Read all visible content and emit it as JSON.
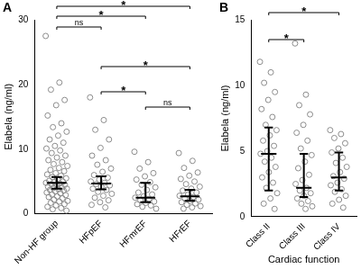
{
  "chart_data": [
    {
      "type": "scatter",
      "title": "A",
      "y_label": "Elabela (ng/ml)",
      "categories": [
        "Non-HF group",
        "HFpEF",
        "HFmrEF",
        "HFrEF"
      ],
      "values": [
        [
          27.5,
          20.3,
          19.2,
          17.6,
          16.8,
          15.2,
          14.0,
          13.4,
          12.7,
          12.1,
          11.5,
          11.0,
          10.5,
          10.1,
          9.8,
          9.4,
          9.0,
          8.7,
          8.3,
          8.0,
          7.7,
          7.4,
          7.1,
          6.8,
          6.6,
          6.3,
          6.1,
          5.9,
          5.7,
          5.5,
          5.3,
          5.1,
          5.0,
          4.9,
          4.8,
          4.7,
          4.6,
          4.5,
          4.4,
          4.2,
          4.1,
          4.0,
          3.9,
          3.8,
          3.7,
          3.6,
          3.5,
          3.3,
          3.2,
          3.0,
          2.9,
          2.7,
          2.6,
          2.4,
          2.2,
          2.0,
          1.9,
          1.7,
          1.5,
          1.3,
          1.1,
          0.9,
          0.7,
          0.5
        ],
        [
          18.0,
          14.5,
          13.0,
          11.5,
          10.2,
          9.0,
          8.3,
          7.6,
          7.0,
          6.5,
          6.0,
          5.6,
          5.3,
          5.0,
          4.8,
          4.6,
          4.4,
          4.2,
          3.9,
          3.7,
          3.4,
          3.1,
          2.8,
          2.5,
          2.1,
          1.8,
          1.4,
          1.0
        ],
        [
          9.6,
          8.0,
          7.0,
          6.3,
          5.8,
          5.3,
          4.9,
          4.5,
          4.1,
          3.7,
          3.3,
          3.0,
          2.7,
          2.5,
          2.3,
          2.1,
          1.9,
          1.7,
          1.5,
          1.3,
          1.1,
          0.8
        ],
        [
          9.4,
          8.2,
          7.1,
          6.4,
          5.9,
          5.4,
          5.0,
          4.6,
          4.2,
          3.9,
          3.6,
          3.3,
          3.0,
          2.8,
          2.6,
          2.4,
          2.2,
          2.0,
          1.8,
          1.6,
          1.4,
          1.2,
          1.0,
          0.8
        ]
      ],
      "median": [
        4.8,
        4.7,
        2.5,
        2.7
      ],
      "error_bars": [
        [
          3.9,
          5.7
        ],
        [
          3.8,
          5.8
        ],
        [
          1.8,
          4.8
        ],
        [
          2.0,
          3.7
        ]
      ],
      "comparisons": [
        {
          "groups": [
            "Non-HF group",
            "HFpEF"
          ],
          "label": "ns"
        },
        {
          "groups": [
            "Non-HF group",
            "HFmrEF"
          ],
          "label": "*"
        },
        {
          "groups": [
            "Non-HF group",
            "HFrEF"
          ],
          "label": "*"
        },
        {
          "groups": [
            "HFpEF",
            "HFmrEF"
          ],
          "label": "*"
        },
        {
          "groups": [
            "HFpEF",
            "HFrEF"
          ],
          "label": "*"
        },
        {
          "groups": [
            "HFmrEF",
            "HFrEF"
          ],
          "label": "ns"
        }
      ],
      "color": "#8c8c8c",
      "marker": "open_circle",
      "ylim": [
        0,
        30
      ],
      "yticks": [
        0,
        10,
        20,
        30
      ],
      "grid": false
    },
    {
      "type": "scatter",
      "title": "B",
      "x_label": "Cardiac function",
      "y_label": "Elabela (ng/ml)",
      "categories": [
        "Class II",
        "Class III",
        "Class IV"
      ],
      "values": [
        [
          11.8,
          11.0,
          10.2,
          9.5,
          8.9,
          8.2,
          7.6,
          7.0,
          6.6,
          6.2,
          5.8,
          5.4,
          5.0,
          4.8,
          4.5,
          4.2,
          3.8,
          3.4,
          3.0,
          2.6,
          2.2,
          1.8,
          1.4,
          1.0,
          0.6
        ],
        [
          13.2,
          9.3,
          8.5,
          7.8,
          7.0,
          6.4,
          5.8,
          5.2,
          4.7,
          4.2,
          3.7,
          3.2,
          2.8,
          2.5,
          2.2,
          2.0,
          1.8,
          1.6,
          1.4,
          1.2,
          1.0,
          0.8,
          0.6
        ],
        [
          6.6,
          6.3,
          6.0,
          5.6,
          5.2,
          4.9,
          4.5,
          4.1,
          3.8,
          3.4,
          3.1,
          2.9,
          2.6,
          2.4,
          2.1,
          1.9,
          1.6,
          1.3,
          1.0,
          0.7
        ]
      ],
      "median": [
        4.8,
        2.2,
        3.0
      ],
      "error_bars": [
        [
          2.0,
          6.8
        ],
        [
          1.5,
          4.8
        ],
        [
          2.0,
          4.9
        ]
      ],
      "comparisons": [
        {
          "groups": [
            "Class II",
            "Class III"
          ],
          "label": "*"
        },
        {
          "groups": [
            "Class II",
            "Class IV"
          ],
          "label": "*"
        }
      ],
      "color": "#8c8c8c",
      "marker": "open_circle",
      "ylim": [
        0,
        15
      ],
      "yticks": [
        0,
        5,
        10,
        15
      ],
      "grid": false
    }
  ]
}
